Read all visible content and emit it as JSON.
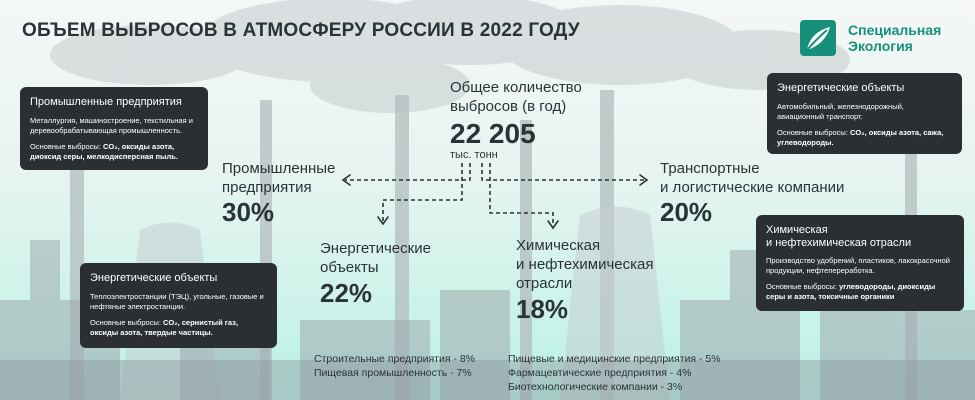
{
  "header": {
    "title": "ОБЪЕМ ВЫБРОСОВ В АТМОСФЕРУ РОССИИ В 2022 ГОДУ"
  },
  "logo": {
    "line1": "Специальная",
    "line2": "Экология"
  },
  "chart_data": {
    "type": "infographic",
    "total": {
      "label_line1": "Общее количество",
      "label_line2": "выбросов (в год)",
      "value": "22 205",
      "unit": "тыс. тонн"
    },
    "categories": [
      {
        "line1": "Промышленные",
        "line2": "предприятия",
        "line3": "",
        "value": 30,
        "label": "30%"
      },
      {
        "line1": "Энергетические",
        "line2": "объекты",
        "line3": "",
        "value": 22,
        "label": "22%"
      },
      {
        "line1": "Химическая",
        "line2": "и нефтехимическая",
        "line3": "отрасли",
        "value": 18,
        "label": "18%"
      },
      {
        "line1": "Транспортные",
        "line2": "и логистические компании",
        "line3": "",
        "value": 20,
        "label": "20%"
      }
    ],
    "minor_categories": [
      {
        "text": "Строительные предприятия - 8%",
        "value": 8
      },
      {
        "text": "Пищевая промышленность - 7%",
        "value": 7
      },
      {
        "text": "Пищевые и медицинские предприятия - 5%",
        "value": 5
      },
      {
        "text": "Фармацевтические предприятия - 4%",
        "value": 4
      },
      {
        "text": "Биотехнологические компании - 3%",
        "value": 3
      }
    ]
  },
  "cards": {
    "industrial": {
      "heading": "Промышленные предприятия",
      "desc": "Металлургия, машиностроение, текстильная и деревообрабатывающая промышленность.",
      "emis_label": "Основные выбросы:",
      "emis_value": "CO₂, оксиды азота, диоксид серы, мелкодисперсная пыль."
    },
    "energy": {
      "heading": "Энергетические объекты",
      "desc": "Теплоэлектростанции (ТЭЦ), угольные, газовые и нефтяные электростанции.",
      "emis_label": "Основные выбросы:",
      "emis_value": "CO₂, сернистый газ, оксиды азота, твердые частицы."
    },
    "transport": {
      "heading": "Энергетические объекты",
      "desc": "Автомобильный, железнодорожный, авиационный транспорт.",
      "emis_label": "Основные выбросы:",
      "emis_value": "CO₂, оксиды азота, сажа, углеводороды."
    },
    "chemical": {
      "heading_line1": "Химическая",
      "heading_line2": "и нефтехимическая отрасли",
      "desc": "Производство удобрений, пластиков, лакокрасочной продукции, нефтепереработка.",
      "emis_label": "Основные выбросы:",
      "emis_value": "углеводороды, диоксиды серы и азота, токсичные органики"
    }
  },
  "colors": {
    "background_top": "#f4f6f6",
    "background_mint": "#bdf3e6",
    "card": "#2b2f31",
    "accent": "#16907a",
    "text": "#2a3336"
  }
}
